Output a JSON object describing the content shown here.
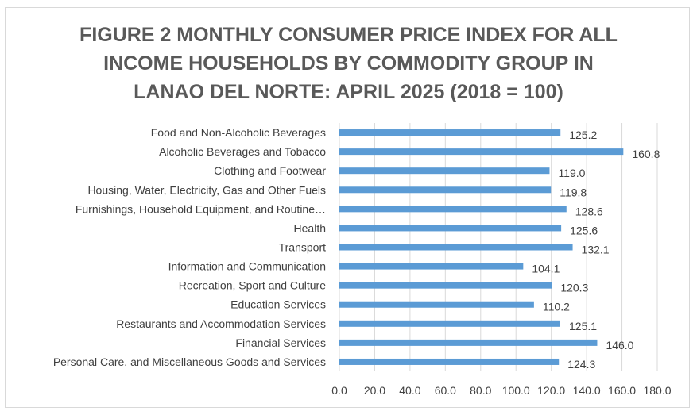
{
  "chart_data": {
    "type": "bar",
    "orientation": "horizontal",
    "title": "FIGURE 2 MONTHLY CONSUMER PRICE INDEX FOR ALL INCOME HOUSEHOLDS BY COMMODITY GROUP IN LANAO DEL NORTE: APRIL 2025 (2018 = 100)",
    "title_lines": [
      "FIGURE 2 MONTHLY CONSUMER PRICE INDEX FOR ALL",
      "INCOME HOUSEHOLDS BY COMMODITY GROUP IN",
      "LANAO DEL NORTE: APRIL 2025 (2018 = 100)"
    ],
    "categories": [
      "Food and Non-Alcoholic Beverages",
      "Alcoholic Beverages and Tobacco",
      "Clothing and Footwear",
      "Housing, Water, Electricity, Gas and Other Fuels",
      "Furnishings, Household Equipment, and Routine…",
      "Health",
      "Transport",
      "Information and Communication",
      "Recreation, Sport and Culture",
      "Education Services",
      "Restaurants and Accommodation Services",
      "Financial Services",
      "Personal Care, and Miscellaneous Goods and Services"
    ],
    "values": [
      125.2,
      160.8,
      119.0,
      119.8,
      128.6,
      125.6,
      132.1,
      104.1,
      120.3,
      110.2,
      125.1,
      146.0,
      124.3
    ],
    "value_labels": [
      "125.2",
      "160.8",
      "119.0",
      "119.8",
      "128.6",
      "125.6",
      "132.1",
      "104.1",
      "120.3",
      "110.2",
      "125.1",
      "146.0",
      "124.3"
    ],
    "xlim": [
      0,
      180
    ],
    "x_ticks": [
      0,
      20,
      40,
      60,
      80,
      100,
      120,
      140,
      160,
      180
    ],
    "x_tick_labels": [
      "0.0",
      "20.0",
      "40.0",
      "60.0",
      "80.0",
      "100.0",
      "120.0",
      "140.0",
      "160.0",
      "180.0"
    ],
    "xlabel": "",
    "ylabel": "",
    "grid": true,
    "legend": false,
    "bar_color": "#5b9bd5",
    "grid_color": "#d9d9d9"
  }
}
